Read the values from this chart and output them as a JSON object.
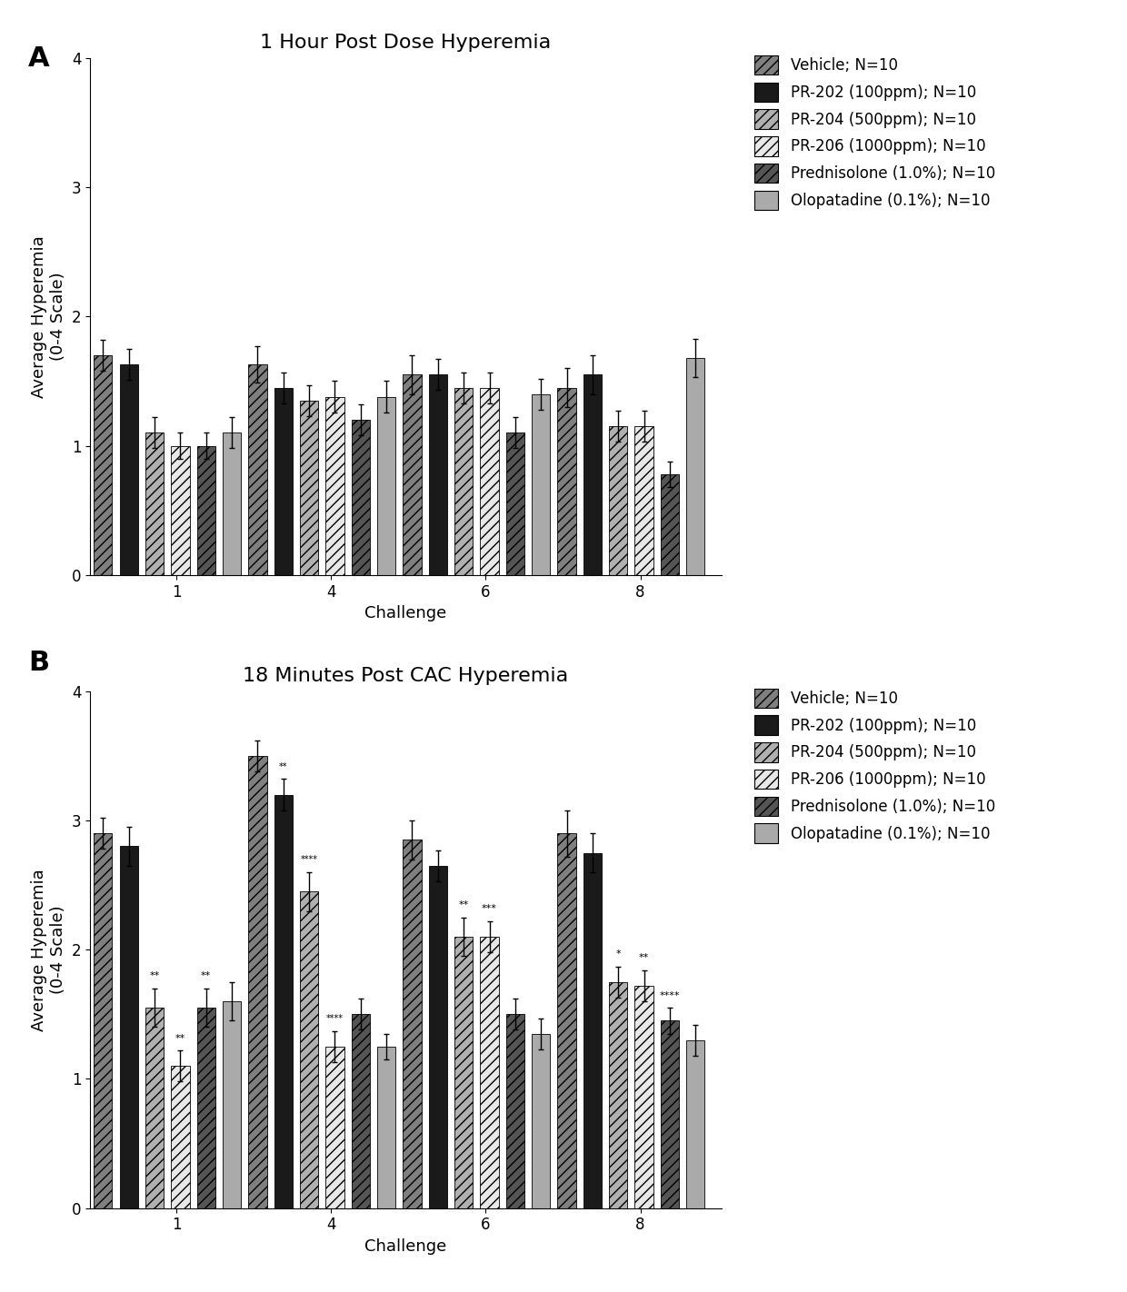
{
  "panel_A": {
    "title": "1 Hour Post Dose Hyperemia",
    "groups": [
      {
        "label": "Vehicle; N=10",
        "color": "#7f7f7f",
        "hatch": "///"
      },
      {
        "label": "PR-202 (100ppm); N=10",
        "color": "#1a1a1a",
        "hatch": ""
      },
      {
        "label": "PR-204 (500ppm); N=10",
        "color": "#b0b0b0",
        "hatch": "///"
      },
      {
        "label": "PR-206 (1000ppm); N=10",
        "color": "#e8e8e8",
        "hatch": "///"
      },
      {
        "label": "Prednisolone (1.0%); N=10",
        "color": "#555555",
        "hatch": "///"
      },
      {
        "label": "Olopatadine (0.1%); N=10",
        "color": "#aaaaaa",
        "hatch": ""
      }
    ],
    "values": [
      [
        1.7,
        1.63,
        1.1,
        1.0,
        1.0,
        1.1
      ],
      [
        1.63,
        1.45,
        1.35,
        1.38,
        1.2,
        1.38
      ],
      [
        1.55,
        1.55,
        1.45,
        1.45,
        1.1,
        1.4
      ],
      [
        1.45,
        1.55,
        1.15,
        1.15,
        0.78,
        1.68
      ]
    ],
    "errors": [
      [
        0.12,
        0.12,
        0.12,
        0.1,
        0.1,
        0.12
      ],
      [
        0.14,
        0.12,
        0.12,
        0.12,
        0.12,
        0.12
      ],
      [
        0.15,
        0.12,
        0.12,
        0.12,
        0.12,
        0.12
      ],
      [
        0.15,
        0.15,
        0.12,
        0.12,
        0.1,
        0.15
      ]
    ],
    "ylabel": "Average Hyperemia\n(0-4 Scale)"
  },
  "panel_B": {
    "title": "18 Minutes Post CAC Hyperemia",
    "groups": [
      {
        "label": "Vehicle; N=10",
        "color": "#7f7f7f",
        "hatch": "///"
      },
      {
        "label": "PR-202 (100ppm); N=10",
        "color": "#1a1a1a",
        "hatch": ""
      },
      {
        "label": "PR-204 (500ppm); N=10",
        "color": "#b0b0b0",
        "hatch": "///"
      },
      {
        "label": "PR-206 (1000ppm); N=10",
        "color": "#e8e8e8",
        "hatch": "///"
      },
      {
        "label": "Prednisolone (1.0%); N=10",
        "color": "#555555",
        "hatch": "///"
      },
      {
        "label": "Olopatadine (0.1%); N=10",
        "color": "#aaaaaa",
        "hatch": ""
      }
    ],
    "values": [
      [
        2.9,
        2.8,
        1.55,
        1.1,
        1.55,
        1.6
      ],
      [
        3.5,
        3.2,
        2.45,
        1.25,
        1.5,
        1.25
      ],
      [
        2.85,
        2.65,
        2.1,
        2.1,
        1.5,
        1.35
      ],
      [
        2.9,
        2.75,
        1.75,
        1.72,
        1.45,
        1.3
      ]
    ],
    "errors": [
      [
        0.12,
        0.15,
        0.15,
        0.12,
        0.15,
        0.15
      ],
      [
        0.12,
        0.12,
        0.15,
        0.12,
        0.12,
        0.1
      ],
      [
        0.15,
        0.12,
        0.15,
        0.12,
        0.12,
        0.12
      ],
      [
        0.18,
        0.15,
        0.12,
        0.12,
        0.1,
        0.12
      ]
    ],
    "sig": {
      "ch1_bars": [
        2,
        3,
        4
      ],
      "ch1_labels": [
        "**",
        "**",
        "**"
      ],
      "ch4_bars": [
        1,
        2,
        3,
        4
      ],
      "ch4_labels": [
        "**",
        "****",
        "****",
        ""
      ],
      "ch6_bars": [
        2,
        3,
        4
      ],
      "ch6_labels": [
        "**",
        "***",
        ""
      ],
      "ch8_bars": [
        2,
        3,
        4
      ],
      "ch8_labels": [
        "*",
        "**",
        "****"
      ]
    },
    "ylabel": "Average Hyperemia\n(0-4 Scale)"
  },
  "xlabel": "Challenge",
  "challenge_labels": [
    "1",
    "4",
    "6",
    "8"
  ],
  "background_color": "#ffffff",
  "panel_label_fontsize": 22,
  "title_fontsize": 16,
  "axis_fontsize": 13,
  "tick_fontsize": 12,
  "legend_fontsize": 12,
  "sig_fontsize": 8
}
